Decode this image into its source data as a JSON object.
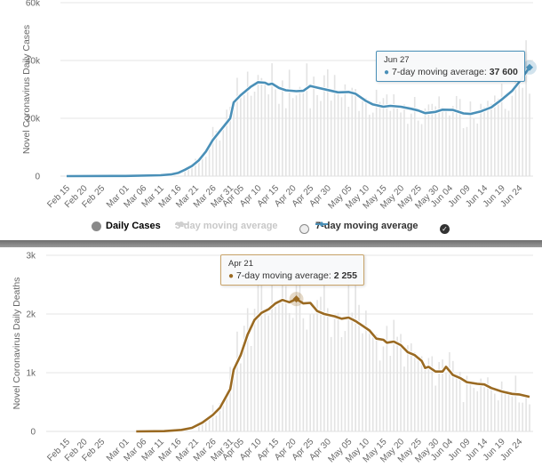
{
  "chart_data": [
    {
      "type": "bar",
      "title": "",
      "ylabel": "Novel Coronavirus Daily Cases",
      "xlabel": "",
      "ylim": [
        0,
        60000
      ],
      "yticks": [
        "0",
        "20k",
        "40k",
        "60k"
      ],
      "ytick_values": [
        0,
        20000,
        40000,
        60000
      ],
      "x_start": "Feb 15",
      "x_end": "Jun 27",
      "xticks": [
        "Feb 15",
        "Feb 20",
        "Feb 25",
        "Mar 01",
        "Mar 06",
        "Mar 11",
        "Mar 16",
        "Mar 21",
        "Mar 26",
        "Mar 31",
        "Apr 05",
        "Apr 10",
        "Apr 15",
        "Apr 20",
        "Apr 25",
        "Apr 30",
        "May 05",
        "May 10",
        "May 15",
        "May 20",
        "May 25",
        "May 30",
        "Jun 04",
        "Jun 09",
        "Jun 14",
        "Jun 19",
        "Jun 24"
      ],
      "grid": true,
      "line_color": "#4a90b8",
      "bar_color": "#e3e3e3",
      "series": [
        {
          "name": "7-day moving average",
          "points": [
            [
              "Feb 15",
              0
            ],
            [
              "Mar 01",
              50
            ],
            [
              "Mar 11",
              300
            ],
            [
              "Mar 14",
              600
            ],
            [
              "Mar 16",
              1100
            ],
            [
              "Mar 18",
              2200
            ],
            [
              "Mar 20",
              3500
            ],
            [
              "Mar 22",
              5500
            ],
            [
              "Mar 24",
              8500
            ],
            [
              "Mar 26",
              12500
            ],
            [
              "Mar 28",
              15500
            ],
            [
              "Mar 31",
              20000
            ],
            [
              "Apr 03",
              25500
            ],
            [
              "Apr 05",
              28000
            ],
            [
              "Apr 08",
              31000
            ],
            [
              "Apr 10",
              32500
            ],
            [
              "Apr 12",
              32300
            ],
            [
              "Apr 13",
              31700
            ],
            [
              "Apr 14",
              32000
            ],
            [
              "Apr 16",
              30500
            ],
            [
              "Apr 18",
              29700
            ],
            [
              "Apr 21",
              29400
            ],
            [
              "Apr 23",
              29500
            ],
            [
              "Apr 25",
              31200
            ],
            [
              "Apr 27",
              30600
            ],
            [
              "Apr 30",
              29800
            ],
            [
              "May 02",
              29000
            ],
            [
              "May 05",
              29100
            ],
            [
              "May 07",
              28500
            ],
            [
              "May 10",
              26000
            ],
            [
              "May 12",
              24800
            ],
            [
              "May 15",
              24000
            ],
            [
              "May 17",
              24300
            ],
            [
              "May 20",
              24000
            ],
            [
              "May 23",
              23300
            ],
            [
              "May 25",
              22700
            ],
            [
              "May 27",
              21800
            ],
            [
              "May 30",
              22200
            ],
            [
              "Jun 02",
              23000
            ],
            [
              "Jun 05",
              22900
            ],
            [
              "Jun 08",
              21700
            ],
            [
              "Jun 10",
              21500
            ],
            [
              "Jun 13",
              22400
            ],
            [
              "Jun 16",
              23800
            ],
            [
              "Jun 19",
              26500
            ],
            [
              "Jun 22",
              29500
            ],
            [
              "Jun 24",
              32500
            ],
            [
              "Jun 27",
              37600
            ]
          ]
        },
        {
          "name": "Daily Cases",
          "values_note": "daily bars around the moving average",
          "points": [
            [
              "Mar 21",
              6000
            ],
            [
              "Mar 26",
              17000
            ],
            [
              "Mar 31",
              24000
            ],
            [
              "Apr 04",
              34000
            ],
            [
              "Apr 06",
              28000
            ],
            [
              "Apr 10",
              35000
            ],
            [
              "Apr 15",
              30000
            ],
            [
              "Apr 20",
              27000
            ],
            [
              "Apr 24",
              39000
            ],
            [
              "Apr 28",
              26000
            ],
            [
              "May 01",
              35000
            ],
            [
              "May 05",
              24000
            ],
            [
              "May 09",
              26000
            ],
            [
              "May 15",
              27000
            ],
            [
              "May 20",
              22000
            ],
            [
              "May 26",
              18000
            ],
            [
              "May 29",
              25000
            ],
            [
              "Jun 04",
              21000
            ],
            [
              "Jun 09",
              17000
            ],
            [
              "Jun 13",
              25000
            ],
            [
              "Jun 19",
              32000
            ],
            [
              "Jun 24",
              40000
            ],
            [
              "Jun 26",
              47000
            ]
          ]
        }
      ],
      "legend": [
        {
          "label": "Daily Cases",
          "state": "shown"
        },
        {
          "label": "3-day moving average",
          "state": "hidden"
        },
        {
          "label": "7-day moving average",
          "state": "shown"
        }
      ],
      "tooltip": {
        "date": "Jun 27",
        "label": "7-day moving average: ",
        "value": "37 600"
      }
    },
    {
      "type": "bar",
      "title": "",
      "ylabel": "Novel Coronavirus Daily Deaths",
      "xlabel": "",
      "ylim": [
        0,
        3000
      ],
      "yticks": [
        "0",
        "1k",
        "2k",
        "3k"
      ],
      "ytick_values": [
        0,
        1000,
        2000,
        3000
      ],
      "x_start": "Feb 15",
      "x_end": "Jun 27",
      "xticks": [
        "Feb 15",
        "Feb 20",
        "Feb 25",
        "Mar 01",
        "Mar 06",
        "Mar 11",
        "Mar 16",
        "Mar 21",
        "Mar 26",
        "Mar 31",
        "Apr 05",
        "Apr 10",
        "Apr 15",
        "Apr 20",
        "Apr 25",
        "Apr 30",
        "May 05",
        "May 10",
        "May 15",
        "May 20",
        "May 25",
        "May 30",
        "Jun 04",
        "Jun 09",
        "Jun 14",
        "Jun 19",
        "Jun 24"
      ],
      "grid": true,
      "line_color": "#9a6a22",
      "bar_color": "#e3e3e3",
      "series": [
        {
          "name": "7-day moving average",
          "points": [
            [
              "Mar 04",
              0
            ],
            [
              "Mar 12",
              5
            ],
            [
              "Mar 17",
              25
            ],
            [
              "Mar 20",
              60
            ],
            [
              "Mar 23",
              150
            ],
            [
              "Mar 26",
              280
            ],
            [
              "Mar 28",
              400
            ],
            [
              "Mar 31",
              720
            ],
            [
              "Apr 03",
              1050
            ],
            [
              "Apr 05",
              1300
            ],
            [
              "Apr 07",
              1650
            ],
            [
              "Apr 09",
              1900
            ],
            [
              "Apr 11",
              2020
            ],
            [
              "Apr 13",
              2080
            ],
            [
              "Apr 15",
              2180
            ],
            [
              "Apr 17",
              2240
            ],
            [
              "Apr 19",
              2200
            ],
            [
              "Apr 21",
              2255
            ],
            [
              "Apr 23",
              2180
            ],
            [
              "Apr 25",
              2190
            ],
            [
              "Apr 27",
              2050
            ],
            [
              "Apr 29",
              2000
            ],
            [
              "May 01",
              1960
            ],
            [
              "May 03",
              1920
            ],
            [
              "May 05",
              1940
            ],
            [
              "May 07",
              1880
            ],
            [
              "May 09",
              1800
            ],
            [
              "May 11",
              1720
            ],
            [
              "May 13",
              1580
            ],
            [
              "May 15",
              1560
            ],
            [
              "May 16",
              1510
            ],
            [
              "May 18",
              1530
            ],
            [
              "May 20",
              1470
            ],
            [
              "May 22",
              1350
            ],
            [
              "May 24",
              1300
            ],
            [
              "May 26",
              1200
            ],
            [
              "May 27",
              1080
            ],
            [
              "May 28",
              1100
            ],
            [
              "May 30",
              1020
            ],
            [
              "Jun 02",
              1020
            ],
            [
              "Jun 03",
              1100
            ],
            [
              "Jun 05",
              960
            ],
            [
              "Jun 07",
              910
            ],
            [
              "Jun 09",
              840
            ],
            [
              "Jun 12",
              810
            ],
            [
              "Jun 14",
              800
            ],
            [
              "Jun 16",
              740
            ],
            [
              "Jun 19",
              680
            ],
            [
              "Jun 22",
              640
            ],
            [
              "Jun 24",
              630
            ],
            [
              "Jun 27",
              590
            ]
          ]
        },
        {
          "name": "Daily Deaths",
          "values_note": "daily bars around the moving average",
          "points": [
            [
              "Mar 26",
              450
            ],
            [
              "Mar 31",
              1100
            ],
            [
              "Apr 04",
              1700
            ],
            [
              "Apr 07",
              2100
            ],
            [
              "Apr 10",
              2600
            ],
            [
              "Apr 14",
              2500
            ],
            [
              "Apr 17",
              2600
            ],
            [
              "Apr 21",
              2750
            ],
            [
              "Apr 25",
              2000
            ],
            [
              "Apr 29",
              2700
            ],
            [
              "May 05",
              2600
            ],
            [
              "May 07",
              2700
            ],
            [
              "May 12",
              1700
            ],
            [
              "May 18",
              1900
            ],
            [
              "May 23",
              1500
            ],
            [
              "May 28",
              1250
            ],
            [
              "Jun 04",
              1350
            ],
            [
              "Jun 08",
              500
            ],
            [
              "Jun 13",
              900
            ],
            [
              "Jun 19",
              850
            ],
            [
              "Jun 23",
              950
            ],
            [
              "Jun 26",
              600
            ]
          ]
        }
      ],
      "tooltip": {
        "date": "Apr 21",
        "label": "7-day moving average: ",
        "value": "2 255"
      }
    }
  ],
  "legend": {
    "daily_cases": "Daily Cases",
    "three_day": "3-day moving average",
    "seven_day": "7-day moving average"
  },
  "tooltips": {
    "top": {
      "date": "Jun 27",
      "label": "7-day moving average: ",
      "value": "37 600"
    },
    "bottom": {
      "date": "Apr 21",
      "label": "7-day moving average: ",
      "value": "2 255"
    }
  }
}
